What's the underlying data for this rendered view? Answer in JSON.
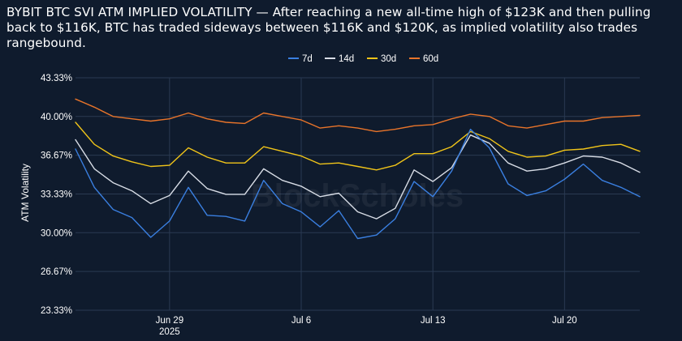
{
  "title": "BYBIT BTC SVI ATM IMPLIED VOLATILITY — After reaching a new all-time high of $123K and then pulling back to $116K, BTC has traded sideways between $116K and $120K, as implied volatility also trades rangebound.",
  "watermark": "BlockScholes",
  "colors": {
    "background": "#0f1b2d",
    "grid": "#2a3a52",
    "text": "#ffffff"
  },
  "chart_data": {
    "type": "line",
    "ylabel": "ATM Volatility",
    "xlabel": "",
    "ylim": [
      23.33,
      43.33
    ],
    "y_ticks": [
      "23.33%",
      "26.67%",
      "30.00%",
      "33.33%",
      "36.67%",
      "40.00%",
      "43.33%"
    ],
    "y_tick_values": [
      23.33,
      26.67,
      30.0,
      33.33,
      36.67,
      40.0,
      43.33
    ],
    "x_range": [
      "2025-06-24",
      "2025-07-24"
    ],
    "x_ticks": [
      {
        "date": "2025-06-29",
        "label": "Jun 29",
        "sublabel": "2025"
      },
      {
        "date": "2025-07-06",
        "label": "Jul 6",
        "sublabel": ""
      },
      {
        "date": "2025-07-13",
        "label": "Jul 13",
        "sublabel": ""
      },
      {
        "date": "2025-07-20",
        "label": "Jul 20",
        "sublabel": ""
      }
    ],
    "grid": true,
    "legend_position": "top-center",
    "x": [
      "2025-06-24",
      "2025-06-25",
      "2025-06-26",
      "2025-06-27",
      "2025-06-28",
      "2025-06-29",
      "2025-06-30",
      "2025-07-01",
      "2025-07-02",
      "2025-07-03",
      "2025-07-04",
      "2025-07-05",
      "2025-07-06",
      "2025-07-07",
      "2025-07-08",
      "2025-07-09",
      "2025-07-10",
      "2025-07-11",
      "2025-07-12",
      "2025-07-13",
      "2025-07-14",
      "2025-07-15",
      "2025-07-16",
      "2025-07-17",
      "2025-07-18",
      "2025-07-19",
      "2025-07-20",
      "2025-07-21",
      "2025-07-22",
      "2025-07-23",
      "2025-07-24"
    ],
    "series": [
      {
        "name": "60d",
        "color": "#e8742a",
        "values": [
          41.5,
          40.8,
          40.0,
          39.8,
          39.6,
          39.8,
          40.3,
          39.8,
          39.5,
          39.4,
          40.3,
          40.0,
          39.7,
          39.0,
          39.2,
          39.0,
          38.7,
          38.9,
          39.2,
          39.3,
          39.8,
          40.2,
          40.0,
          39.2,
          39.0,
          39.3,
          39.6,
          39.6,
          39.9,
          40.0,
          40.1
        ]
      },
      {
        "name": "30d",
        "color": "#f0c419",
        "values": [
          39.5,
          37.6,
          36.6,
          36.1,
          35.7,
          35.8,
          37.3,
          36.5,
          36.0,
          36.0,
          37.4,
          37.0,
          36.6,
          35.9,
          36.0,
          35.7,
          35.4,
          35.8,
          36.8,
          36.8,
          37.4,
          38.7,
          38.1,
          37.0,
          36.5,
          36.6,
          37.1,
          37.2,
          37.5,
          37.6,
          37.0
        ]
      },
      {
        "name": "14d",
        "color": "#d8dde6",
        "values": [
          38.0,
          35.5,
          34.3,
          33.6,
          32.5,
          33.2,
          35.3,
          33.8,
          33.3,
          33.3,
          35.5,
          34.5,
          34.0,
          33.1,
          33.4,
          31.8,
          31.2,
          32.1,
          35.4,
          34.4,
          35.6,
          38.4,
          37.7,
          36.0,
          35.3,
          35.5,
          36.0,
          36.6,
          36.5,
          36.0,
          35.2
        ]
      },
      {
        "name": "7d",
        "color": "#3a7fe0",
        "values": [
          37.2,
          33.9,
          32.0,
          31.3,
          29.6,
          31.0,
          33.9,
          31.5,
          31.4,
          31.0,
          34.5,
          32.5,
          31.8,
          30.5,
          31.9,
          29.5,
          29.8,
          31.2,
          34.4,
          33.1,
          35.3,
          38.9,
          37.3,
          34.2,
          33.2,
          33.6,
          34.6,
          35.9,
          34.5,
          33.9,
          33.1
        ]
      }
    ]
  }
}
